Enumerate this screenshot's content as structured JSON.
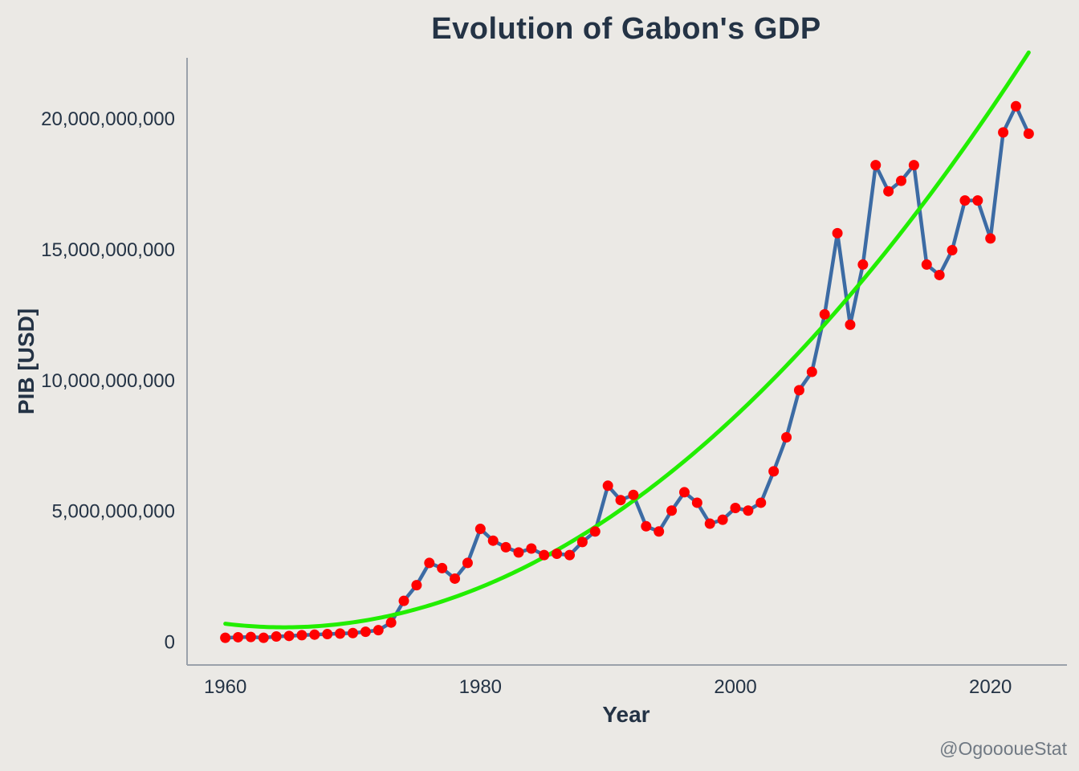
{
  "chart_data": {
    "type": "line",
    "title": "Evolution of Gabon's GDP",
    "xlabel": "Year",
    "ylabel": "PIB [USD]",
    "credit": "@OgoooueStat",
    "xlim": [
      1957,
      2026
    ],
    "ylim": [
      -900000000,
      22300000000
    ],
    "x_ticks": [
      1960,
      1980,
      2000,
      2020
    ],
    "y_ticks": [
      0,
      5000000000,
      10000000000,
      15000000000,
      20000000000
    ],
    "y_tick_labels": [
      "0",
      "5,000,000,000",
      "10,000,000,000",
      "15,000,000,000",
      "20,000,000,000"
    ],
    "grid": false,
    "colors": {
      "background": "#ebe9e5",
      "axis": "#9aa1aa",
      "line": "#3c6ba4",
      "points": "#ff0000",
      "trend": "#22ee00",
      "text": "#243345"
    },
    "series": [
      {
        "type": "line",
        "x": [
          1960,
          1961,
          1962,
          1963,
          1964,
          1965,
          1966,
          1967,
          1968,
          1969,
          1970,
          1971,
          1972,
          1973,
          1974,
          1975,
          1976,
          1977,
          1978,
          1979,
          1980,
          1981,
          1982,
          1983,
          1984,
          1985,
          1986,
          1987,
          1988,
          1989,
          1990,
          1991,
          1992,
          1993,
          1994,
          1995,
          1996,
          1997,
          1998,
          1999,
          2000,
          2001,
          2002,
          2003,
          2004,
          2005,
          2006,
          2007,
          2008,
          2009,
          2010,
          2011,
          2012,
          2013,
          2014,
          2015,
          2016,
          2017,
          2018,
          2019,
          2020,
          2021,
          2022,
          2023
        ],
        "y": [
          140000000,
          160000000,
          170000000,
          140000000,
          190000000,
          210000000,
          240000000,
          260000000,
          280000000,
          300000000,
          320000000,
          370000000,
          430000000,
          720000000,
          1550000000,
          2150000000,
          3000000000,
          2800000000,
          2400000000,
          3000000000,
          4300000000,
          3850000000,
          3600000000,
          3400000000,
          3550000000,
          3300000000,
          3350000000,
          3300000000,
          3800000000,
          4200000000,
          5950000000,
          5400000000,
          5600000000,
          4400000000,
          4200000000,
          5000000000,
          5700000000,
          5300000000,
          4500000000,
          4650000000,
          5100000000,
          5000000000,
          5300000000,
          6500000000,
          7800000000,
          9600000000,
          10300000000,
          12500000000,
          15600000000,
          12100000000,
          14400000000,
          18200000000,
          17200000000,
          17600000000,
          18200000000,
          14400000000,
          14000000000,
          14950000000,
          16850000000,
          16850000000,
          15400000000,
          19450000000,
          20450000000,
          19400000000
        ]
      },
      {
        "type": "quadratic-trend",
        "x_range": [
          1960,
          2023
        ],
        "coefficients": {
          "vertex_x": 1964.6,
          "vertex_y": 540000000,
          "a": 6440000
        }
      }
    ]
  }
}
